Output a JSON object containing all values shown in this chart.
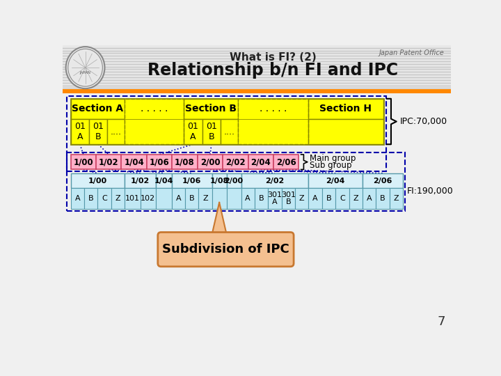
{
  "title_line1": "What is FI? (2)",
  "title_line2": "Relationship b/n FI and IPC",
  "subtitle": "Japan Patent Office",
  "page_number": "7",
  "bg_color": "#f0f0f0",
  "yellow": "#FFFF00",
  "yellow_edge": "#888800",
  "pink": "#FFB0C8",
  "pink_edge": "#cc4466",
  "light_blue": "#C8EEF8",
  "blue_edge": "#5599aa",
  "dot_color": "#0000AA",
  "main_groups": [
    "1/00",
    "1/02",
    "1/04",
    "1/06",
    "1/08",
    "2/00",
    "2/02",
    "2/04",
    "2/06"
  ],
  "ipc_annotation": "IPC:70,000",
  "fi_annotation": "FI:190,000",
  "subdivision_label": "Subdivision of IPC",
  "callout_fill": "#F4C090",
  "callout_edge": "#C87830"
}
